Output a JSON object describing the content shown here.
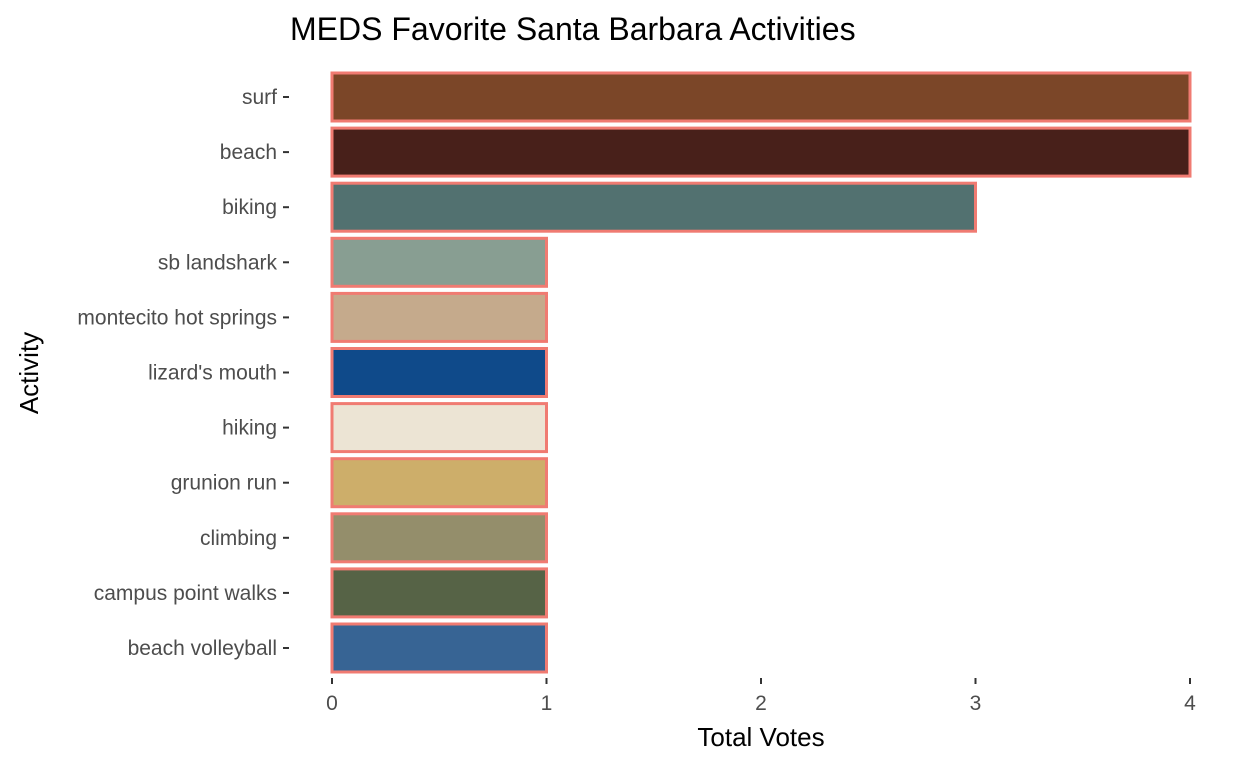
{
  "chart_data": {
    "type": "bar",
    "orientation": "horizontal",
    "title": "MEDS Favorite Santa Barbara Activities",
    "xlabel": "Total Votes",
    "ylabel": "Activity",
    "xlim": [
      0,
      4
    ],
    "xticks": [
      "0",
      "1",
      "2",
      "3",
      "4"
    ],
    "grid": false,
    "legend": "none",
    "bar_outline_color": "#f07b72",
    "categories": [
      "surf",
      "beach",
      "biking",
      "sb landshark",
      "montecito hot springs",
      "lizard's mouth",
      "hiking",
      "grunion run",
      "climbing",
      "campus point walks",
      "beach volleyball"
    ],
    "values": [
      4,
      4,
      3,
      1,
      1,
      1,
      1,
      1,
      1,
      1,
      1
    ],
    "colors": [
      "#7b4628",
      "#48201a",
      "#527170",
      "#889e92",
      "#c5aa8c",
      "#0f4a8a",
      "#ece4d4",
      "#cdae6a",
      "#948e6b",
      "#566346",
      "#376494"
    ]
  }
}
